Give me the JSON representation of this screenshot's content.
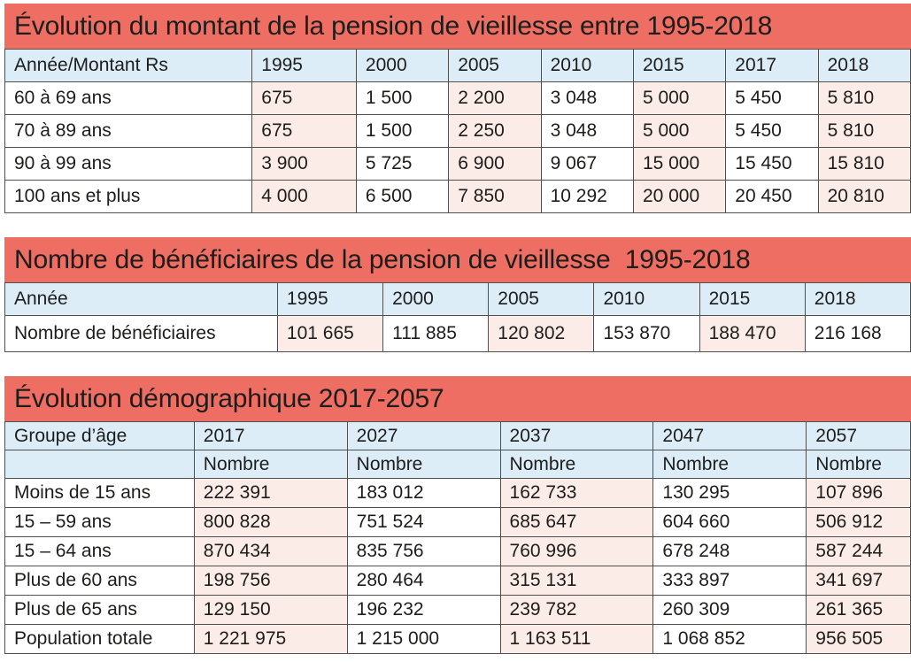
{
  "colors": {
    "title_bar_red": "#ee6e64",
    "header_blue": "#dcedf8",
    "cell_pink": "#fbece7",
    "border_gray": "#4f4f4f",
    "text_black": "#1d1d1b"
  },
  "tables": [
    {
      "title": "Évolution du montant de la pension de vieillesse entre 1995-2018",
      "header_rows": [
        [
          "Année/Montant Rs",
          "1995",
          "2000",
          "2005",
          "2010",
          "2015",
          "2017",
          "2018"
        ]
      ],
      "rows": [
        [
          "60 à 69 ans",
          "675",
          "1 500",
          "2 200",
          "3 048",
          "5 000",
          "5 450",
          "5 810"
        ],
        [
          "70 à 89 ans",
          "675",
          "1 500",
          "2 250",
          "3 048",
          "5 000",
          "5 450",
          "5 810"
        ],
        [
          "90 à 99 ans",
          "3 900",
          "5 725",
          "6 900",
          "9 067",
          "15 000",
          "15 450",
          "15 810"
        ],
        [
          "100 ans et plus",
          "4 000",
          "6 500",
          "7 850",
          "10 292",
          "20 000",
          "20 450",
          "20 810"
        ]
      ],
      "pink_columns": [
        1,
        3,
        5,
        7
      ]
    },
    {
      "title": "Nombre de bénéficiaires de la pension de vieillesse  1995-2018",
      "header_rows": [
        [
          "Année",
          "1995",
          "2000",
          "2005",
          "2010",
          "2015",
          "2018"
        ]
      ],
      "rows": [
        [
          "Nombre de bénéficiaires",
          "101 665",
          "111 885",
          "120 802",
          "153 870",
          "188 470",
          "216 168"
        ]
      ],
      "pink_columns": [
        1,
        3,
        5
      ]
    },
    {
      "title": "Évolution démographique 2017-2057",
      "header_rows": [
        [
          "Groupe d’âge",
          "2017",
          "2027",
          "2037",
          "2047",
          "2057"
        ],
        [
          "",
          "Nombre",
          "Nombre",
          "Nombre",
          "Nombre",
          "Nombre"
        ]
      ],
      "rows": [
        [
          "Moins de 15 ans",
          "222 391",
          "183 012",
          "162 733",
          "130 295",
          "107 896"
        ],
        [
          "15 – 59 ans",
          "800 828",
          "751 524",
          "685 647",
          "604 660",
          "506 912"
        ],
        [
          "15 – 64 ans",
          "870 434",
          "835 756",
          "760 996",
          "678 248",
          "587 244"
        ],
        [
          "Plus de 60 ans",
          "198 756",
          "280 464",
          "315 131",
          "333 897",
          "341 697"
        ],
        [
          "Plus de 65 ans",
          "129 150",
          "196 232",
          "239 782",
          "260 309",
          "261 365"
        ],
        [
          "Population totale",
          "1 221 975",
          "1 215 000",
          "1 163 511",
          "1 068 852",
          "956 505"
        ]
      ],
      "pink_columns": [
        1,
        3,
        5
      ]
    }
  ]
}
